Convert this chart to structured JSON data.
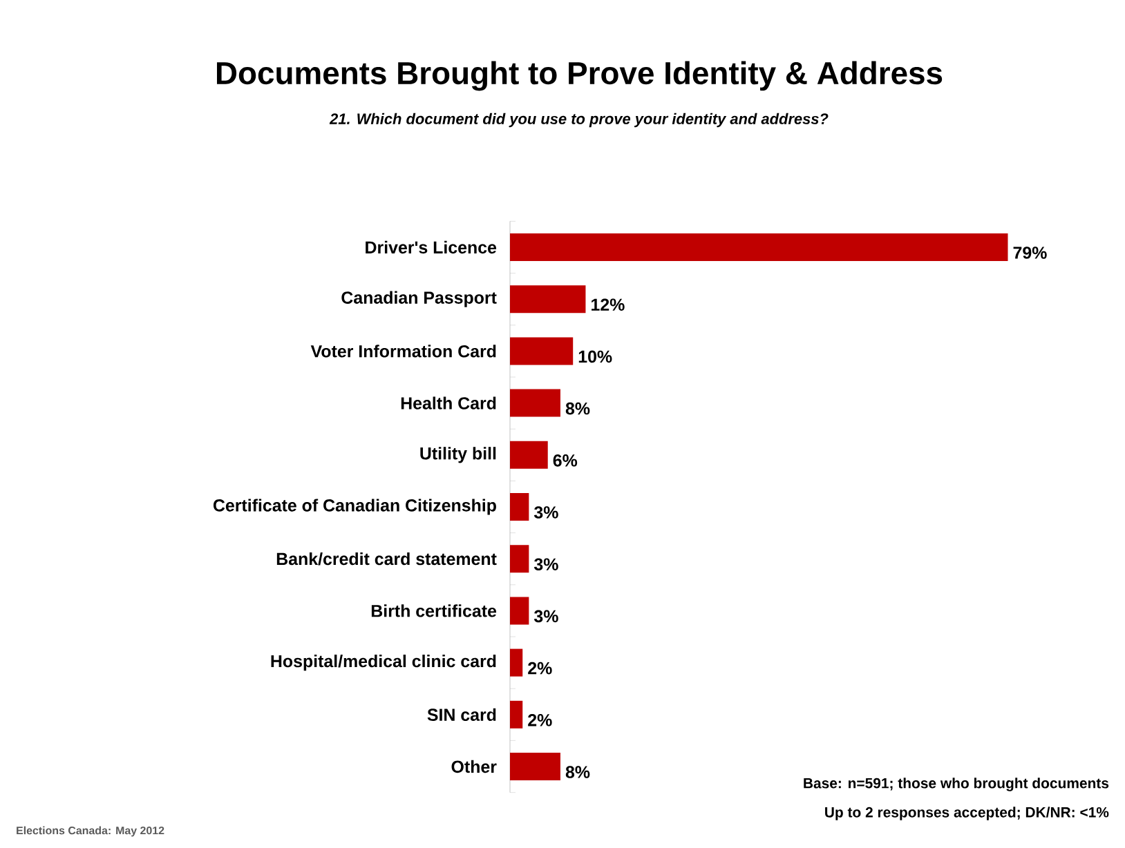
{
  "chart_data": {
    "type": "bar",
    "orientation": "horizontal",
    "title": "Documents Brought to Prove Identity & Address",
    "subtitle": "21. Which document did you use to prove your identity and address?",
    "categories": [
      "Driver's Licence",
      "Canadian Passport",
      "Voter Information Card",
      "Health Card",
      "Utility bill",
      "Certificate of Canadian Citizenship",
      "Bank/credit card statement",
      "Birth certificate",
      "Hospital/medical clinic card",
      "SIN card",
      "Other"
    ],
    "values": [
      79,
      12,
      10,
      8,
      6,
      3,
      3,
      3,
      2,
      2,
      8
    ],
    "value_labels": [
      "79%",
      "12%",
      "10%",
      "8%",
      "6%",
      "3%",
      "3%",
      "3%",
      "2%",
      "2%",
      "8%"
    ],
    "color": "#c00000",
    "annotations": [
      "Base: n=591; those who brought documents",
      "Up to 2 responses accepted; DK/NR: <1%",
      "Elections Canada: May 2012"
    ]
  }
}
